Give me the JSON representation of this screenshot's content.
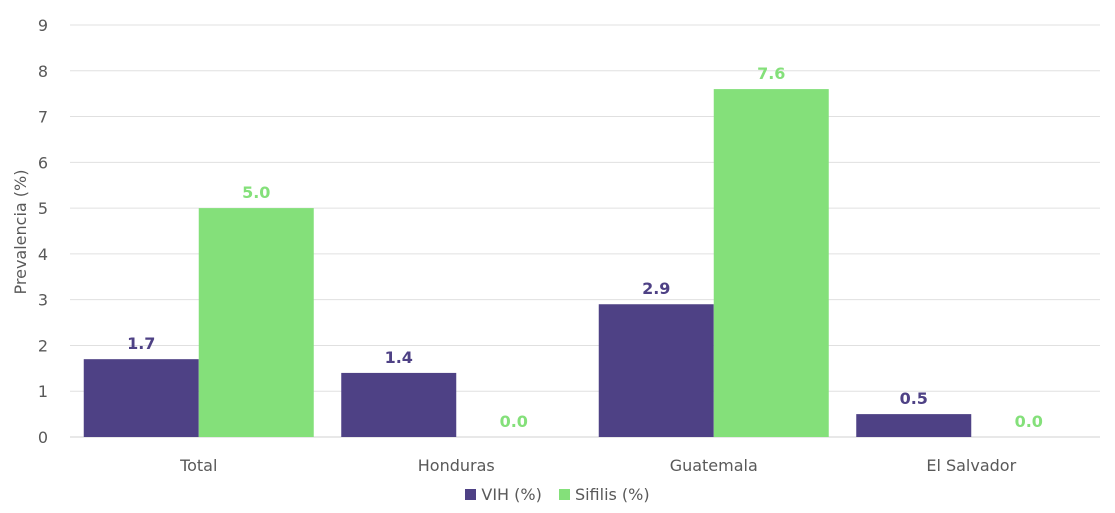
{
  "chart_data": {
    "type": "bar",
    "ylabel": "Prevalencia (%)",
    "xlabel": "",
    "ylim": [
      0,
      9
    ],
    "yticks": [
      0,
      1,
      2,
      3,
      4,
      5,
      6,
      7,
      8,
      9
    ],
    "grid": true,
    "legend_position": "bottom",
    "categories": [
      "Total",
      "Honduras",
      "Guatemala",
      "El Salvador"
    ],
    "series": [
      {
        "name": "VIH (%)",
        "color": "#4e4185",
        "values": [
          1.7,
          1.4,
          2.9,
          0.5
        ],
        "labels": [
          "1.7",
          "1.4",
          "2.9",
          "0.5"
        ]
      },
      {
        "name": "Sifilis (%)",
        "color": "#84e07a",
        "values": [
          5.0,
          0.0,
          7.6,
          0.0
        ],
        "labels": [
          "5.0",
          "0.0",
          "7.6",
          "0.0"
        ]
      }
    ]
  }
}
